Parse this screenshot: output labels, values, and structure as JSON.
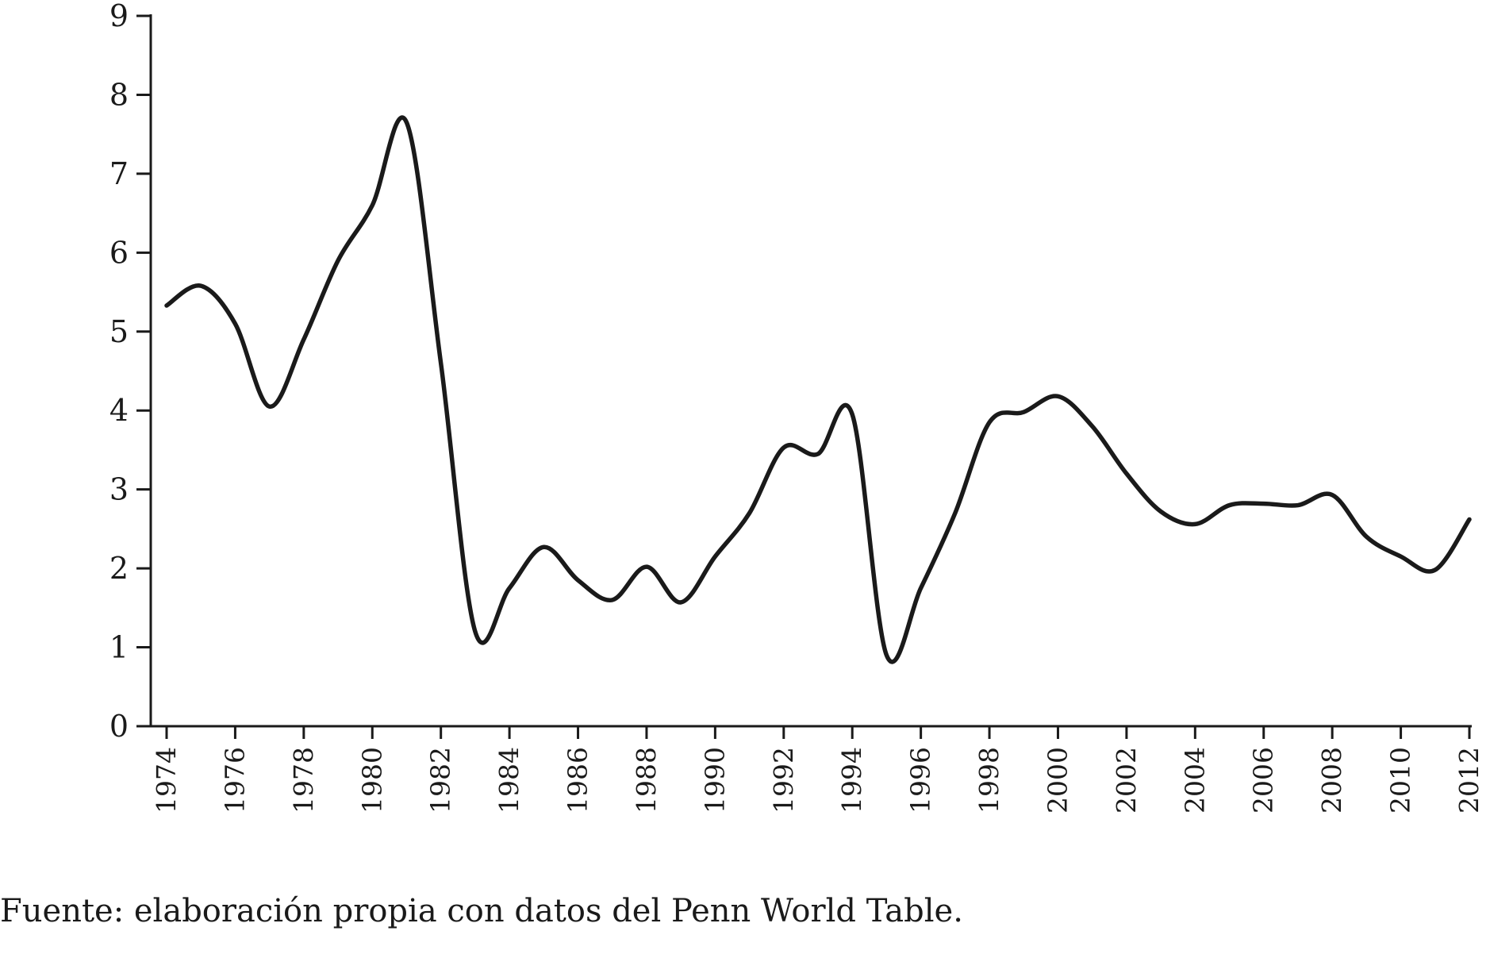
{
  "chart_data": {
    "type": "line",
    "title": "",
    "xlabel": "",
    "ylabel": "",
    "ylim": [
      0,
      9
    ],
    "xlim": [
      1974,
      2012
    ],
    "yticks": [
      0,
      1,
      2,
      3,
      4,
      5,
      6,
      7,
      8,
      9
    ],
    "xtick_labels": [
      "1974",
      "1976",
      "1978",
      "1980",
      "1982",
      "1984",
      "1986",
      "1988",
      "1990",
      "1992",
      "1994",
      "1996",
      "1998",
      "2000",
      "2002",
      "2004",
      "2006",
      "2008",
      "2010",
      "2012"
    ],
    "grid": false,
    "legend": "none",
    "series": [
      {
        "color": "#1a1a1a",
        "x": [
          1974,
          1975,
          1976,
          1977,
          1978,
          1979,
          1980,
          1981,
          1982,
          1983,
          1984,
          1985,
          1986,
          1987,
          1988,
          1989,
          1990,
          1991,
          1992,
          1993,
          1994,
          1995,
          1996,
          1997,
          1998,
          1999,
          2000,
          2001,
          2002,
          2003,
          2004,
          2005,
          2006,
          2007,
          2008,
          2009,
          2010,
          2011,
          2012
        ],
        "y": [
          5.33,
          5.58,
          5.1,
          4.05,
          4.9,
          5.9,
          6.6,
          7.65,
          4.6,
          1.2,
          1.75,
          2.27,
          1.85,
          1.6,
          2.02,
          1.57,
          2.15,
          2.7,
          3.53,
          3.45,
          3.95,
          0.9,
          1.75,
          2.7,
          3.85,
          3.98,
          4.18,
          3.8,
          3.2,
          2.72,
          2.56,
          2.8,
          2.82,
          2.8,
          2.93,
          2.4,
          2.15,
          1.98,
          2.62
        ]
      }
    ]
  },
  "source_note": "Fuente: elaboración propia con datos del Penn World Table."
}
